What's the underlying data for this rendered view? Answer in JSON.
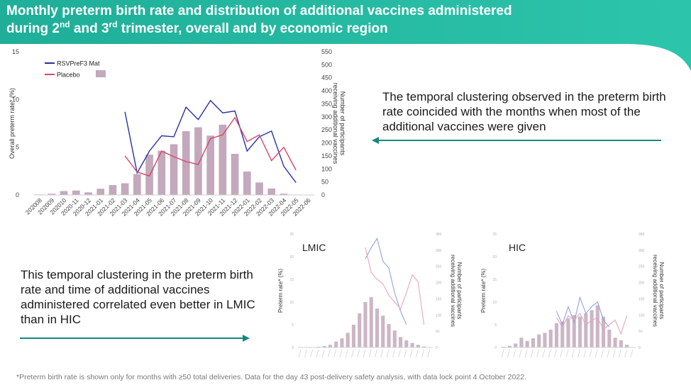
{
  "header": {
    "title_line1": "Monthly preterm birth rate and distribution of additional vaccines administered",
    "title_line2_a": "during 2",
    "title_line2_sup1": "nd",
    "title_line2_b": " and 3",
    "title_line2_sup2": "rd",
    "title_line2_c": " trimester, overall and by economic region",
    "colors": {
      "banner": "#22b49c",
      "banner_dark": "#138a7b"
    }
  },
  "notes": {
    "note1": "The temporal clustering observed in the preterm birth rate coincided with the months when most of the additional vaccines were given",
    "note2": "This temporal clustering in the preterm birth rate and time of additional vaccines administered correlated even better in LMIC than in HIC",
    "arrow_color": "#138a7b"
  },
  "footnote": "*Preterm birth rate is shown only for months with ≥50 total deliveries. Data for the day 43 post-delivery safety analysis, with data lock point 4 October 2022.",
  "chart_data": [
    {
      "type": "bar",
      "title": "",
      "ylabel": "Overall preterm rate* (%)",
      "y2label_1": "Number of participants",
      "y2label_2": "receiving additional vaccines",
      "ylim": [
        0,
        15
      ],
      "yticks": [
        "0",
        "5",
        "10",
        "15"
      ],
      "y2lim": [
        0,
        550
      ],
      "y2ticks": [
        "0",
        "50",
        "100",
        "150",
        "200",
        "250",
        "300",
        "350",
        "400",
        "450",
        "500",
        "550"
      ],
      "categories": [
        "202008",
        "202009",
        "202010",
        "2020-11",
        "2020-12",
        "2021-01",
        "2021-02",
        "2021-03",
        "2021-04",
        "2021-05",
        "2021-06",
        "2021-07",
        "2021-08",
        "2021-09",
        "2021-10",
        "2021-11",
        "2021-12",
        "2022-01",
        "2022-02",
        "2022-03",
        "2022-04",
        "2022-05",
        "2022-06"
      ],
      "legend": [
        {
          "label": "RSVPreF3 Mat",
          "color": "#2b2fa8"
        },
        {
          "label": "Placebo",
          "color": "#d9466a"
        }
      ],
      "bar_color": "#c3a9bb",
      "bars": [
        2,
        5,
        15,
        17,
        10,
        24,
        38,
        45,
        80,
        155,
        170,
        195,
        245,
        260,
        228,
        270,
        158,
        90,
        48,
        25,
        5,
        0,
        0
      ],
      "series": [
        {
          "name": "RSVPreF3 Mat",
          "color": "#2b2fa8",
          "values": [
            null,
            null,
            null,
            null,
            null,
            null,
            null,
            8.7,
            2.3,
            4.6,
            6.2,
            6.1,
            9.2,
            7.9,
            9.9,
            8.6,
            8.8,
            4.6,
            6.1,
            6.7,
            3.0,
            1.3,
            null
          ]
        },
        {
          "name": "Placebo",
          "color": "#d9466a",
          "values": [
            null,
            null,
            null,
            null,
            null,
            null,
            null,
            4.1,
            2.4,
            2.0,
            4.6,
            4.0,
            3.5,
            3.2,
            5.9,
            6.3,
            8.1,
            5.6,
            6.3,
            3.6,
            5.0,
            2.6,
            null
          ]
        }
      ]
    },
    {
      "type": "bar",
      "title": "LMIC",
      "ylabel": "Preterm rate* (%)",
      "y2label_1": "Number of participants",
      "y2label_2": "receiving additional vaccines",
      "ylim": [
        0,
        25
      ],
      "y2lim": [
        0,
        350
      ],
      "bars": [
        0,
        0,
        0,
        2,
        4,
        8,
        18,
        28,
        45,
        70,
        105,
        140,
        155,
        120,
        98,
        72,
        52,
        32,
        22,
        14,
        8,
        3,
        0
      ],
      "series": [
        {
          "name": "RSVPreF3 Mat",
          "color": "#8da0e0",
          "values": [
            null,
            null,
            null,
            null,
            null,
            null,
            null,
            null,
            null,
            null,
            null,
            19.5,
            22.0,
            24.0,
            19.0,
            17.5,
            12.0,
            8.0,
            5.0,
            null,
            null,
            null,
            null
          ]
        },
        {
          "name": "Placebo",
          "color": "#e7a3b8",
          "values": [
            null,
            null,
            null,
            null,
            null,
            null,
            null,
            null,
            null,
            null,
            null,
            22.0,
            16.5,
            15.0,
            14.0,
            11.5,
            10.0,
            8.5,
            12.0,
            16.0,
            14.5,
            5.0,
            null
          ]
        }
      ]
    },
    {
      "type": "bar",
      "title": "HIC",
      "ylabel": "Preterm rate* (%)",
      "y2label_1": "Number of participants",
      "y2label_2": "receiving additional vaccines",
      "ylim": [
        0,
        25
      ],
      "y2lim": [
        0,
        350
      ],
      "bars": [
        2,
        5,
        12,
        30,
        20,
        28,
        40,
        45,
        55,
        75,
        80,
        90,
        100,
        95,
        105,
        115,
        130,
        95,
        55,
        30,
        22,
        8,
        0
      ],
      "series": [
        {
          "name": "RSVPreF3 Mat",
          "color": "#8da0e0",
          "values": [
            null,
            null,
            null,
            null,
            null,
            null,
            null,
            null,
            null,
            8.0,
            5.0,
            9.0,
            5.5,
            11.0,
            7.5,
            9.0,
            10.0,
            6.0,
            4.5,
            null,
            null,
            null,
            null
          ]
        },
        {
          "name": "Placebo",
          "color": "#e7a3b8",
          "values": [
            null,
            null,
            null,
            null,
            null,
            null,
            null,
            null,
            null,
            6.5,
            4.5,
            7.0,
            6.0,
            7.5,
            5.0,
            6.0,
            6.5,
            4.0,
            5.0,
            6.0,
            3.0,
            7.0,
            null
          ]
        }
      ]
    }
  ]
}
